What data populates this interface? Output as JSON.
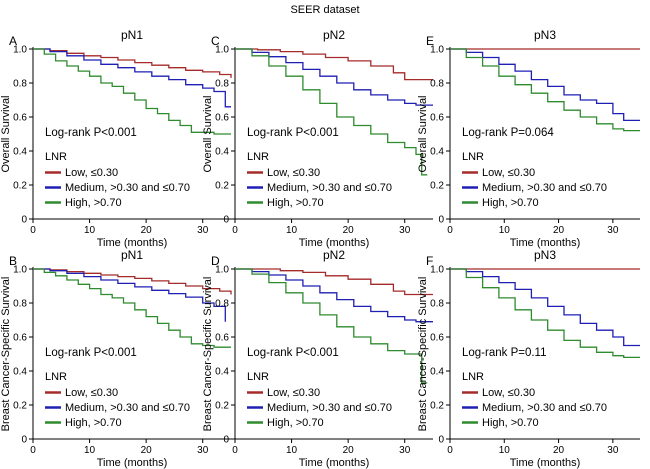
{
  "figure": {
    "title": "SEER dataset"
  },
  "legend": {
    "title": "LNR"
  },
  "colors": {
    "Low": "#a52a2a",
    "Medium": "#1f1fb4",
    "High": "#2e8b2e",
    "axis": "#000000"
  },
  "chart_data": [
    {
      "panel": "A",
      "title": "pN1",
      "type": "line",
      "xlabel": "Time (months)",
      "ylabel": "Overall Survival",
      "xlim": [
        0,
        35
      ],
      "ylim": [
        0,
        1.0
      ],
      "xticks": [
        0,
        10,
        20,
        30
      ],
      "yticks": [
        0,
        0.2,
        0.4,
        0.6,
        0.8,
        1.0
      ],
      "annotation": "Log-rank P<0.001",
      "series": [
        {
          "name": "Low, ≤0.30",
          "color": "#a52a2a",
          "x": [
            0,
            3,
            6,
            9,
            12,
            15,
            18,
            21,
            24,
            27,
            30,
            33,
            35
          ],
          "y": [
            1.0,
            0.99,
            0.975,
            0.96,
            0.95,
            0.935,
            0.92,
            0.905,
            0.89,
            0.875,
            0.865,
            0.85,
            0.83
          ]
        },
        {
          "name": "Medium, >0.30 and ≤0.70",
          "color": "#1f1fb4",
          "x": [
            0,
            3,
            6,
            9,
            12,
            15,
            18,
            21,
            24,
            27,
            30,
            32,
            33,
            34,
            35
          ],
          "y": [
            1.0,
            0.985,
            0.96,
            0.935,
            0.91,
            0.89,
            0.865,
            0.84,
            0.82,
            0.79,
            0.77,
            0.75,
            0.75,
            0.66,
            0.66
          ]
        },
        {
          "name": "High, >0.70",
          "color": "#2e8b2e",
          "x": [
            0,
            2,
            4,
            6,
            8,
            10,
            12,
            14,
            16,
            18,
            20,
            22,
            24,
            26,
            28,
            30,
            32,
            35
          ],
          "y": [
            1.0,
            0.97,
            0.93,
            0.9,
            0.87,
            0.84,
            0.8,
            0.78,
            0.74,
            0.7,
            0.65,
            0.62,
            0.58,
            0.55,
            0.51,
            0.51,
            0.5,
            0.5
          ]
        }
      ]
    },
    {
      "panel": "B",
      "title": "pN1",
      "type": "line",
      "xlabel": "Time (months)",
      "ylabel": "Breast Cancer-Specific Survival",
      "xlim": [
        0,
        35
      ],
      "ylim": [
        0,
        1.0
      ],
      "xticks": [
        0,
        10,
        20,
        30
      ],
      "yticks": [
        0,
        0.2,
        0.4,
        0.6,
        0.8,
        1.0
      ],
      "annotation": "Log-rank P<0.001",
      "series": [
        {
          "name": "Low, ≤0.30",
          "color": "#a52a2a",
          "x": [
            0,
            3,
            6,
            9,
            12,
            15,
            18,
            21,
            24,
            27,
            30,
            33,
            35
          ],
          "y": [
            1.0,
            0.995,
            0.985,
            0.975,
            0.965,
            0.955,
            0.945,
            0.93,
            0.915,
            0.9,
            0.885,
            0.87,
            0.85
          ]
        },
        {
          "name": "Medium, >0.30 and ≤0.70",
          "color": "#1f1fb4",
          "x": [
            0,
            3,
            6,
            9,
            12,
            15,
            18,
            21,
            24,
            27,
            30,
            32,
            33,
            34
          ],
          "y": [
            1.0,
            0.99,
            0.975,
            0.955,
            0.935,
            0.915,
            0.895,
            0.875,
            0.855,
            0.835,
            0.8,
            0.78,
            0.78,
            0.69
          ]
        },
        {
          "name": "High, >0.70",
          "color": "#2e8b2e",
          "x": [
            0,
            2,
            4,
            6,
            8,
            10,
            12,
            14,
            16,
            18,
            20,
            22,
            24,
            26,
            28,
            30,
            32,
            35
          ],
          "y": [
            1.0,
            0.98,
            0.96,
            0.935,
            0.91,
            0.885,
            0.85,
            0.83,
            0.8,
            0.76,
            0.72,
            0.68,
            0.64,
            0.6,
            0.56,
            0.55,
            0.54,
            0.54
          ]
        }
      ]
    },
    {
      "panel": "C",
      "title": "pN2",
      "type": "line",
      "xlabel": "Time (months)",
      "ylabel": "Overall Survival",
      "xlim": [
        0,
        35
      ],
      "ylim": [
        0,
        1.0
      ],
      "xticks": [
        0,
        10,
        20,
        30
      ],
      "yticks": [
        0,
        0.2,
        0.4,
        0.6,
        0.8,
        1.0
      ],
      "annotation": "Log-rank P<0.001",
      "series": [
        {
          "name": "Low, ≤0.30",
          "color": "#a52a2a",
          "x": [
            0,
            4,
            8,
            12,
            16,
            20,
            24,
            28,
            30,
            35
          ],
          "y": [
            1.0,
            0.995,
            0.985,
            0.97,
            0.95,
            0.93,
            0.9,
            0.86,
            0.82,
            0.82
          ]
        },
        {
          "name": "Medium, >0.30 and ≤0.70",
          "color": "#1f1fb4",
          "x": [
            0,
            3,
            6,
            9,
            12,
            15,
            18,
            21,
            24,
            27,
            30,
            32,
            35
          ],
          "y": [
            1.0,
            0.98,
            0.955,
            0.92,
            0.88,
            0.84,
            0.8,
            0.76,
            0.73,
            0.7,
            0.68,
            0.67,
            0.67
          ]
        },
        {
          "name": "High, >0.70",
          "color": "#2e8b2e",
          "x": [
            0,
            3,
            6,
            9,
            12,
            15,
            18,
            21,
            24,
            27,
            30,
            32,
            33,
            34
          ],
          "y": [
            1.0,
            0.96,
            0.9,
            0.84,
            0.76,
            0.68,
            0.6,
            0.55,
            0.5,
            0.45,
            0.42,
            0.38,
            0.26,
            0.26
          ]
        }
      ]
    },
    {
      "panel": "D",
      "title": "pN2",
      "type": "line",
      "xlabel": "Time (months)",
      "ylabel": "Breast Cancer-Specific Survival",
      "xlim": [
        0,
        35
      ],
      "ylim": [
        0,
        1.0
      ],
      "xticks": [
        0,
        10,
        20,
        30
      ],
      "yticks": [
        0,
        0.2,
        0.4,
        0.6,
        0.8,
        1.0
      ],
      "annotation": "Log-rank P<0.001",
      "series": [
        {
          "name": "Low, ≤0.30",
          "color": "#a52a2a",
          "x": [
            0,
            4,
            8,
            12,
            16,
            20,
            24,
            28,
            30,
            35
          ],
          "y": [
            1.0,
            1.0,
            0.99,
            0.98,
            0.96,
            0.94,
            0.91,
            0.87,
            0.85,
            0.85
          ]
        },
        {
          "name": "Medium, >0.30 and ≤0.70",
          "color": "#1f1fb4",
          "x": [
            0,
            3,
            6,
            9,
            12,
            15,
            18,
            21,
            24,
            27,
            30,
            32,
            35
          ],
          "y": [
            1.0,
            0.985,
            0.965,
            0.935,
            0.9,
            0.86,
            0.82,
            0.78,
            0.75,
            0.72,
            0.7,
            0.69,
            0.69
          ]
        },
        {
          "name": "High, >0.70",
          "color": "#2e8b2e",
          "x": [
            0,
            3,
            6,
            9,
            12,
            15,
            18,
            21,
            24,
            27,
            30,
            32,
            33,
            34
          ],
          "y": [
            1.0,
            0.97,
            0.92,
            0.86,
            0.8,
            0.73,
            0.66,
            0.6,
            0.56,
            0.52,
            0.5,
            0.5,
            0.33,
            0.33
          ]
        }
      ]
    },
    {
      "panel": "E",
      "title": "pN3",
      "type": "line",
      "xlabel": "Time (months)",
      "ylabel": "Overall Survival",
      "xlim": [
        0,
        35
      ],
      "ylim": [
        0,
        1.0
      ],
      "xticks": [
        0,
        10,
        20,
        30
      ],
      "yticks": [
        0,
        0.2,
        0.4,
        0.6,
        0.8,
        1.0
      ],
      "annotation": "Log-rank P=0.064",
      "series": [
        {
          "name": "Low, ≤0.30",
          "color": "#a52a2a",
          "x": [
            0,
            35
          ],
          "y": [
            1.0,
            1.0
          ]
        },
        {
          "name": "Medium, >0.30 and ≤0.70",
          "color": "#1f1fb4",
          "x": [
            0,
            3,
            6,
            9,
            12,
            15,
            18,
            21,
            24,
            27,
            30,
            32,
            35
          ],
          "y": [
            1.0,
            0.98,
            0.95,
            0.91,
            0.87,
            0.82,
            0.78,
            0.73,
            0.7,
            0.68,
            0.62,
            0.58,
            0.58
          ]
        },
        {
          "name": "High, >0.70",
          "color": "#2e8b2e",
          "x": [
            0,
            3,
            6,
            9,
            12,
            15,
            18,
            21,
            24,
            27,
            30,
            32,
            35
          ],
          "y": [
            1.0,
            0.95,
            0.9,
            0.84,
            0.79,
            0.74,
            0.69,
            0.64,
            0.6,
            0.56,
            0.53,
            0.52,
            0.52
          ]
        }
      ]
    },
    {
      "panel": "F",
      "title": "pN3",
      "type": "line",
      "xlabel": "Time (months)",
      "ylabel": "Breast Cancer-Specific Survival",
      "xlim": [
        0,
        35
      ],
      "ylim": [
        0,
        1.0
      ],
      "xticks": [
        0,
        10,
        20,
        30
      ],
      "yticks": [
        0,
        0.2,
        0.4,
        0.6,
        0.8,
        1.0
      ],
      "annotation": "Log-rank P=0.11",
      "series": [
        {
          "name": "Low, ≤0.30",
          "color": "#a52a2a",
          "x": [
            0,
            35
          ],
          "y": [
            1.0,
            1.0
          ]
        },
        {
          "name": "Medium, >0.30 and ≤0.70",
          "color": "#1f1fb4",
          "x": [
            0,
            3,
            6,
            9,
            12,
            15,
            18,
            21,
            24,
            27,
            30,
            32,
            35
          ],
          "y": [
            1.0,
            0.985,
            0.955,
            0.92,
            0.88,
            0.83,
            0.78,
            0.73,
            0.68,
            0.64,
            0.6,
            0.55,
            0.55
          ]
        },
        {
          "name": "High, >0.70",
          "color": "#2e8b2e",
          "x": [
            0,
            3,
            6,
            9,
            12,
            15,
            18,
            21,
            24,
            27,
            30,
            32,
            35
          ],
          "y": [
            1.0,
            0.95,
            0.89,
            0.83,
            0.76,
            0.7,
            0.64,
            0.58,
            0.54,
            0.51,
            0.49,
            0.48,
            0.48
          ]
        }
      ]
    }
  ]
}
